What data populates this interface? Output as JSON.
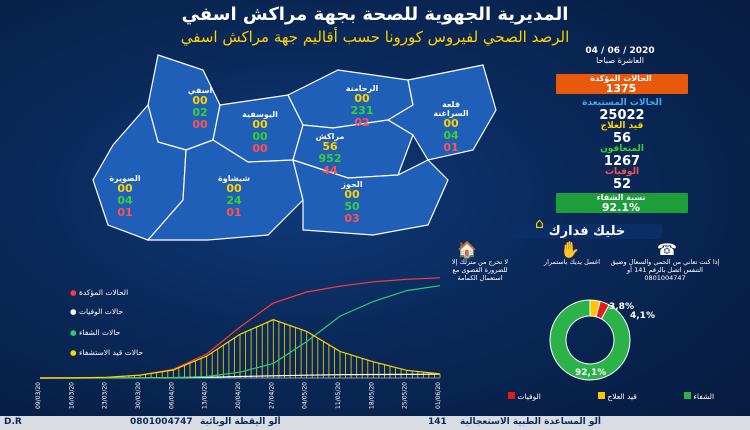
{
  "title": "المديرية الجهوية للصحة بجهة مراكش اسفي",
  "subtitle": "الرصد الصحي لفيروس كورونا حسب أقاليم جهة مراكش اسفي",
  "date": "04 / 06 / 2020",
  "time": "العاشرة صباحا",
  "stats": {
    "confirmed_label": "الحالات المؤكدة",
    "confirmed_value": "1375",
    "excluded_label": "الحالات المستبعدة",
    "excluded_value": "25022",
    "in_treatment_label": "قيد العلاج",
    "in_treatment_value": "56",
    "recovered_label": "المتعافون",
    "recovered_value": "1267",
    "deaths_label": "الوفيات",
    "deaths_value": "52",
    "recovery_rate_label": "نسبة الشفاء",
    "recovery_rate_value": "92.1%"
  },
  "colors": {
    "yellow": "#ffd200",
    "green": "#39d12f",
    "red": "#ff5252",
    "orange": "#e8590c",
    "recover_green": "#1e9e3a"
  },
  "regions": [
    {
      "name": "اسفي",
      "a": "00",
      "b": "02",
      "c": "00"
    },
    {
      "name": "اليوسفية",
      "a": "00",
      "b": "00",
      "c": "00"
    },
    {
      "name": "الرحامنة",
      "a": "00",
      "b": "231",
      "c": "02"
    },
    {
      "name": "قلعة السراغنة",
      "a": "00",
      "b": "04",
      "c": "01"
    },
    {
      "name": "مراكش",
      "a": "56",
      "b": "952",
      "c": "44"
    },
    {
      "name": "الصويرة",
      "a": "00",
      "b": "04",
      "c": "01"
    },
    {
      "name": "شيشاوة",
      "a": "00",
      "b": "24",
      "c": "01"
    },
    {
      "name": "الحوز",
      "a": "00",
      "b": "50",
      "c": "03"
    }
  ],
  "tips_title": "خليك فدارك",
  "tips": [
    "لا تخرج من منزلك إلا للضرورة القصوى مع استعمال الكمامة",
    "اغسل يديك باستمرار",
    "إذا كنت تعاني من الحمى والسعال وضيق التنفس اتصل بالرقم 141 أو 0801004747"
  ],
  "chart_legend": {
    "confirmed": "الحالات المؤكدة",
    "deaths": "حالات الوفيات",
    "recovered": "حالات الشفاء",
    "in_treatment": "حالات قيد الاستشفاء"
  },
  "donut_legend": {
    "deaths": "الوفيات",
    "treatment": "قيد العلاج",
    "recovered": "الشفاء"
  },
  "footer": {
    "left": "D.R",
    "text1": "0801004747",
    "text2": "ألو اليقظة الوبائية",
    "text3": "141",
    "text4": "ألو المساعدة الطبية الاستعجالية"
  },
  "chart_data": [
    {
      "type": "line",
      "x_ticks": [
        "09/03/20",
        "16/03/20",
        "23/03/20",
        "30/03/20",
        "06/04/20",
        "13/04/20",
        "20/04/20",
        "27/04/20",
        "04/05/20",
        "11/05/20",
        "18/05/20",
        "25/05/20",
        "01/06/20"
      ],
      "series": [
        {
          "name": "الحالات المؤكدة",
          "values": [
            0,
            2,
            10,
            40,
            120,
            330,
            700,
            1030,
            1180,
            1260,
            1320,
            1355,
            1375
          ]
        },
        {
          "name": "حالات الوفيات",
          "values": [
            0,
            0,
            1,
            2,
            5,
            10,
            20,
            30,
            38,
            45,
            48,
            50,
            52
          ]
        },
        {
          "name": "حالات الشفاء",
          "values": [
            0,
            0,
            0,
            0,
            5,
            20,
            80,
            200,
            500,
            850,
            1050,
            1200,
            1267
          ]
        },
        {
          "name": "حالات قيد الاستشفاء",
          "values": [
            0,
            2,
            9,
            38,
            110,
            300,
            600,
            800,
            640,
            365,
            222,
            105,
            56
          ]
        }
      ]
    },
    {
      "type": "pie",
      "categories": [
        "الشفاء",
        "قيد العلاج",
        "الوفيات"
      ],
      "values": [
        92.1,
        4.1,
        3.8
      ],
      "labels": [
        "92,1%",
        "4,1%",
        "3,8%"
      ]
    }
  ]
}
